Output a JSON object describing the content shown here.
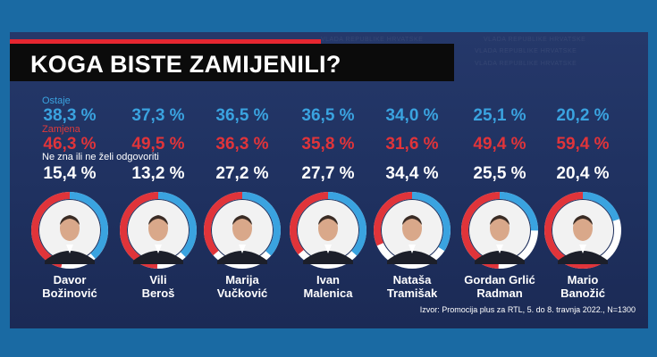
{
  "title": "KOGA BISTE ZAMIJENILI?",
  "labels": {
    "keep": "Ostaje",
    "replace": "Zamjena",
    "dont_know": "Ne zna ili ne želi odgovoriti"
  },
  "source": "Izvor: Promocija plus za RTL, 5. do 8. travnja 2022., N=1300",
  "watermark": "VLADA REPUBLIKE HRVATSKE",
  "colors": {
    "keep": "#3aa3e0",
    "replace": "#e0343a",
    "dont_know": "#ffffff",
    "background": "#1a6aa3",
    "panel": "#1f3160"
  },
  "people": [
    {
      "first": "Davor",
      "last": "Božinović",
      "keep": "38,3 %",
      "replace": "46,3 %",
      "dk": "15,4 %"
    },
    {
      "first": "Vili",
      "last": "Beroš",
      "keep": "37,3 %",
      "replace": "49,5 %",
      "dk": "13,2 %"
    },
    {
      "first": "Marija",
      "last": "Vučković",
      "keep": "36,5 %",
      "replace": "36,3 %",
      "dk": "27,2 %"
    },
    {
      "first": "Ivan",
      "last": "Malenica",
      "keep": "36,5 %",
      "replace": "35,8 %",
      "dk": "27,7 %"
    },
    {
      "first": "Nataša",
      "last": "Tramišak",
      "keep": "34,0 %",
      "replace": "31,6 %",
      "dk": "34,4 %"
    },
    {
      "first": "Gordan Grlić",
      "last": "Radman",
      "keep": "25,1 %",
      "replace": "49,4 %",
      "dk": "25,5 %"
    },
    {
      "first": "Mario",
      "last": "Banožić",
      "keep": "20,2 %",
      "replace": "59,4 %",
      "dk": "20,4 %"
    }
  ],
  "chart_data": {
    "type": "pie",
    "title": "KOGA BISTE ZAMIJENILI?",
    "categories": [
      "Davor Božinović",
      "Vili Beroš",
      "Marija Vučković",
      "Ivan Malenica",
      "Nataša Tramišak",
      "Gordan Grlić Radman",
      "Mario Banožić"
    ],
    "series": [
      {
        "name": "Ostaje",
        "values": [
          38.3,
          37.3,
          36.5,
          36.5,
          34.0,
          25.1,
          20.2
        ]
      },
      {
        "name": "Zamjena",
        "values": [
          46.3,
          49.5,
          36.3,
          35.8,
          31.6,
          49.4,
          59.4
        ]
      },
      {
        "name": "Ne zna ili ne želi odgovoriti",
        "values": [
          15.4,
          13.2,
          27.2,
          27.7,
          34.4,
          25.5,
          20.4
        ]
      }
    ],
    "unit": "%"
  }
}
